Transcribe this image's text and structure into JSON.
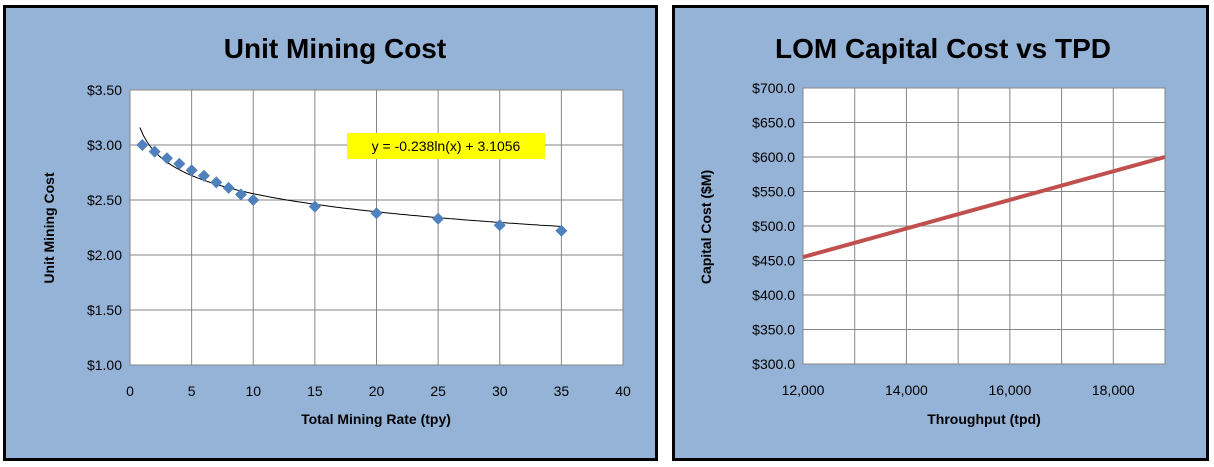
{
  "chart_data": [
    {
      "type": "scatter",
      "title": "Unit Mining Cost",
      "xlabel": "Total Mining  Rate  (tpy)",
      "ylabel": "Unit Mining Cost",
      "xlim": [
        0,
        40
      ],
      "ylim": [
        1.0,
        3.5
      ],
      "x_ticks": [
        "0",
        "5",
        "10",
        "15",
        "20",
        "25",
        "30",
        "35",
        "40"
      ],
      "y_ticks": [
        "$1.00",
        "$1.50",
        "$2.00",
        "$2.50",
        "$3.00",
        "$3.50"
      ],
      "grid": true,
      "marker": "diamond",
      "marker_color": "#4f81bd",
      "series": [
        {
          "x": [
            1,
            2,
            3,
            4,
            5,
            6,
            7,
            8,
            9,
            10,
            15,
            20,
            25,
            30,
            35
          ],
          "y": [
            3.0,
            2.94,
            2.88,
            2.83,
            2.77,
            2.72,
            2.66,
            2.61,
            2.55,
            2.5,
            2.44,
            2.38,
            2.33,
            2.27,
            2.22
          ]
        }
      ],
      "trendline": {
        "type": "log",
        "a": -0.238,
        "b": 3.1056,
        "color": "#000000"
      },
      "trendline_label": "y = -0.238ln(x) + 3.1056",
      "trendline_label_color": "#ffff00"
    },
    {
      "type": "line",
      "title": "LOM Capital Cost vs TPD",
      "xlabel": "Throughput (tpd)",
      "ylabel": "Capital Cost ($M)",
      "xlim": [
        12000,
        19000
      ],
      "ylim": [
        300,
        700
      ],
      "x_ticks": [
        "12,000",
        "14,000",
        "16,000",
        "18,000"
      ],
      "x_tick_values": [
        12000,
        14000,
        16000,
        18000
      ],
      "y_ticks": [
        "$300.0",
        "$350.0",
        "$400.0",
        "$450.0",
        "$500.0",
        "$550.0",
        "$600.0",
        "$650.0",
        "$700.0"
      ],
      "grid": true,
      "series": [
        {
          "x": [
            12000,
            19000
          ],
          "y": [
            455,
            600
          ],
          "color": "#c0504d"
        }
      ]
    }
  ]
}
